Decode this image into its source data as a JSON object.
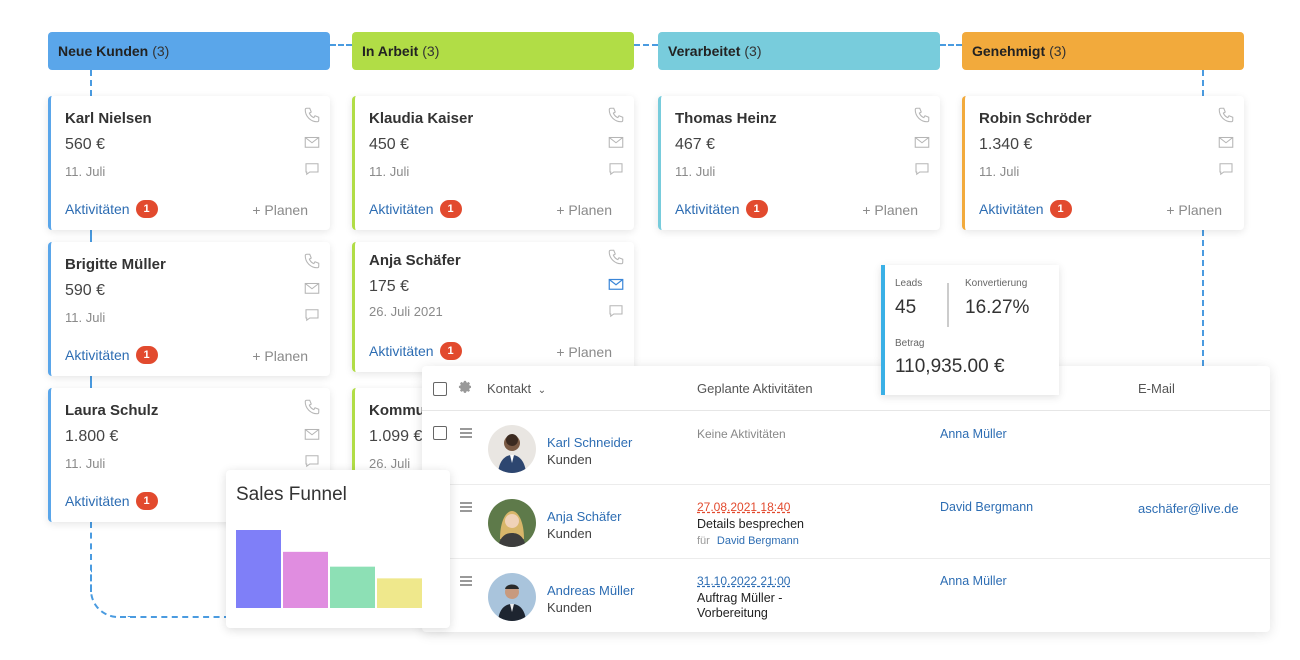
{
  "stages": [
    {
      "name": "Neue Kunden",
      "count": "(3)",
      "color": "#5aa6ea"
    },
    {
      "name": "In Arbeit",
      "count": "(3)",
      "color": "#b1dd46"
    },
    {
      "name": "Verarbeitet",
      "count": "(3)",
      "color": "#78ccdc"
    },
    {
      "name": "Genehmigt",
      "count": "(3)",
      "color": "#f2aa3c"
    }
  ],
  "cards": {
    "karl": {
      "name": "Karl Nielsen",
      "amount": "560 €",
      "date": "11. Juli",
      "activities": "Aktivitäten",
      "badge": "1",
      "plan": "+ Planen"
    },
    "brigitte": {
      "name": "Brigitte Müller",
      "amount": "590 €",
      "date": "11. Juli",
      "activities": "Aktivitäten",
      "badge": "1",
      "plan": "+ Planen"
    },
    "laura": {
      "name": "Laura Schulz",
      "amount": "1.800 €",
      "date": "11. Juli",
      "activities": "Aktivitäten",
      "badge": "1",
      "plan": ""
    },
    "klaudia": {
      "name": "Klaudia Kaiser",
      "amount": "450 €",
      "date": "11. Juli",
      "activities": "Aktivitäten",
      "badge": "1",
      "plan": "+ Planen"
    },
    "anja": {
      "name": "Anja Schäfer",
      "amount": "175 €",
      "date": "26. Juli 2021",
      "activities": "Aktivitäten",
      "badge": "1",
      "plan": "+ Planen"
    },
    "kommu": {
      "name": "Kommu",
      "amount": "1.099 €",
      "date": "26. Juli",
      "activities": "",
      "badge": "",
      "plan": ""
    },
    "thomas": {
      "name": "Thomas Heinz",
      "amount": "467 €",
      "date": "11. Juli",
      "activities": "Aktivitäten",
      "badge": "1",
      "plan": "+ Planen"
    },
    "robin": {
      "name": "Robin Schröder",
      "amount": "1.340 €",
      "date": "11. Juli",
      "activities": "Aktivitäten",
      "badge": "1",
      "plan": "+ Planen"
    }
  },
  "stats": {
    "leads_label": "Leads",
    "leads_value": "45",
    "conv_label": "Konvertierung",
    "conv_value": "16.27%",
    "amount_label": "Betrag",
    "amount_value": "110,935.00 €"
  },
  "table": {
    "headers": {
      "contact": "Kontakt",
      "activities": "Geplante Aktivitäten",
      "email": "E-Mail"
    },
    "rows": [
      {
        "name": "Karl Schneider",
        "type": "Kunden",
        "activity_none": "Keine Aktivitäten",
        "owner": "Anna Müller",
        "email": ""
      },
      {
        "name": "Anja Schäfer",
        "type": "Kunden",
        "activity_date": "27.08.2021 18:40",
        "activity_title": "Details besprechen",
        "activity_for": "für",
        "activity_person": "David Bergmann",
        "owner": "David Bergmann",
        "email": "aschäfer@live.de"
      },
      {
        "name": "Andreas Müller",
        "type": "Kunden",
        "activity_date": "31.10.2022 21:00",
        "activity_title_1": "Auftrag Müller -",
        "activity_title_2": "Vorbereitung",
        "owner": "Anna Müller",
        "email": ""
      }
    ]
  },
  "funnel": {
    "title": "Sales Funnel",
    "chart_data": {
      "type": "bar",
      "categories": [
        "",
        "",
        "",
        ""
      ],
      "values": [
        100,
        72,
        53,
        38
      ],
      "colors": [
        "#7f7ff8",
        "#e08de0",
        "#8de0b5",
        "#efe88c"
      ],
      "ylim": [
        0,
        100
      ]
    }
  }
}
